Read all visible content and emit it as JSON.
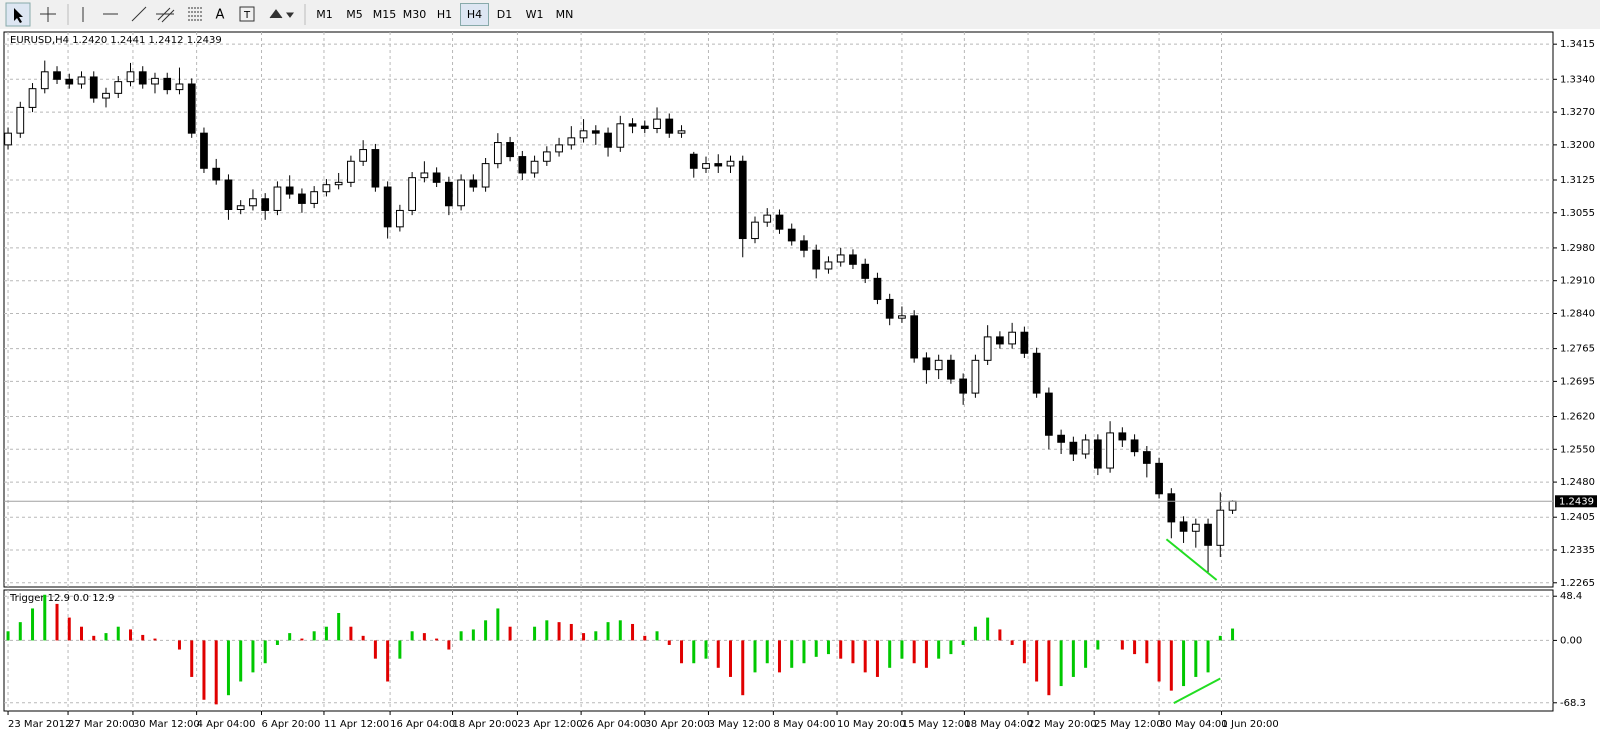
{
  "toolbar": {
    "timeframes": [
      "M1",
      "M5",
      "M15",
      "M30",
      "H1",
      "H4",
      "D1",
      "W1",
      "MN"
    ],
    "active": "H4"
  },
  "chart_data": [
    {
      "type": "candlestick",
      "title": "EURUSD,H4  1.2420 1.2441 1.2412 1.2439",
      "up_color": "#ffffff",
      "down_color": "#000000",
      "outline_color": "#000000",
      "open": [
        1.32,
        1.3225,
        1.328,
        1.332,
        1.3356,
        1.334,
        1.333,
        1.3345,
        1.33,
        1.331,
        1.3335,
        1.3356,
        1.333,
        1.3342,
        1.3318,
        1.333,
        1.3225,
        1.315,
        1.3125,
        1.3062,
        1.307,
        1.3085,
        1.306,
        1.311,
        1.3095,
        1.3075,
        1.31,
        1.3115,
        1.312,
        1.3165,
        1.319,
        1.311,
        1.3025,
        1.306,
        1.313,
        1.314,
        1.312,
        1.307,
        1.3125,
        1.311,
        1.316,
        1.3205,
        1.3175,
        1.314,
        1.3165,
        1.3185,
        1.32,
        1.3215,
        1.323,
        1.3225,
        1.3195,
        1.3245,
        1.324,
        1.3235,
        1.3255,
        1.3225,
        1.318,
        1.315,
        1.316,
        1.3155,
        1.3165,
        1.3,
        1.3035,
        1.305,
        1.302,
        1.2995,
        1.2975,
        1.2935,
        1.295,
        1.2965,
        1.2945,
        1.2915,
        1.287,
        1.283,
        1.2835,
        1.2745,
        1.272,
        1.274,
        1.27,
        1.267,
        1.274,
        1.279,
        1.2775,
        1.28,
        1.2755,
        1.267,
        1.258,
        1.2565,
        1.254,
        1.257,
        1.251,
        1.2585,
        1.257,
        1.2545,
        1.252,
        1.2455,
        1.2395,
        1.2375,
        1.239,
        1.2345,
        1.242
      ],
      "high": [
        1.3237,
        1.3292,
        1.3332,
        1.338,
        1.3368,
        1.3352,
        1.3357,
        1.3357,
        1.3322,
        1.3347,
        1.3375,
        1.3368,
        1.3354,
        1.3354,
        1.3365,
        1.3342,
        1.3237,
        1.317,
        1.3137,
        1.3082,
        1.3105,
        1.3097,
        1.3122,
        1.3135,
        1.3107,
        1.3112,
        1.3127,
        1.314,
        1.3177,
        1.321,
        1.3202,
        1.3122,
        1.3072,
        1.3142,
        1.3165,
        1.3152,
        1.3132,
        1.3137,
        1.3137,
        1.3172,
        1.3225,
        1.3217,
        1.3187,
        1.3177,
        1.3197,
        1.3215,
        1.324,
        1.3255,
        1.3242,
        1.3237,
        1.3262,
        1.3257,
        1.3252,
        1.328,
        1.3267,
        1.3242,
        1.3185,
        1.3175,
        1.318,
        1.3177,
        1.3177,
        1.3047,
        1.3065,
        1.3062,
        1.3032,
        1.3007,
        1.2987,
        1.2962,
        1.298,
        1.2977,
        1.2957,
        1.2927,
        1.2882,
        1.2855,
        1.2847,
        1.2757,
        1.2752,
        1.2752,
        1.2712,
        1.2752,
        1.2815,
        1.2802,
        1.282,
        1.2812,
        1.2767,
        1.2682,
        1.2592,
        1.2577,
        1.2582,
        1.2582,
        1.261,
        1.2597,
        1.2582,
        1.2557,
        1.2532,
        1.2467,
        1.2407,
        1.2402,
        1.2402,
        1.2458,
        1.2441
      ],
      "low": [
        1.319,
        1.3215,
        1.327,
        1.331,
        1.333,
        1.332,
        1.332,
        1.329,
        1.328,
        1.33,
        1.3325,
        1.332,
        1.331,
        1.3308,
        1.3308,
        1.3215,
        1.314,
        1.3115,
        1.304,
        1.3052,
        1.306,
        1.304,
        1.305,
        1.3085,
        1.3055,
        1.3065,
        1.309,
        1.3105,
        1.311,
        1.3155,
        1.31,
        1.3,
        1.3015,
        1.305,
        1.312,
        1.311,
        1.305,
        1.306,
        1.31,
        1.31,
        1.315,
        1.3165,
        1.3125,
        1.313,
        1.3155,
        1.3175,
        1.319,
        1.3205,
        1.32,
        1.3175,
        1.3185,
        1.3225,
        1.3225,
        1.3225,
        1.3215,
        1.3215,
        1.313,
        1.314,
        1.314,
        1.314,
        1.296,
        1.299,
        1.3025,
        1.301,
        1.2985,
        1.296,
        1.2915,
        1.2925,
        1.294,
        1.2935,
        1.2905,
        1.286,
        1.2815,
        1.282,
        1.2735,
        1.269,
        1.27,
        1.269,
        1.2645,
        1.266,
        1.273,
        1.2765,
        1.2765,
        1.2745,
        1.266,
        1.255,
        1.254,
        1.2525,
        1.253,
        1.2495,
        1.25,
        1.2555,
        1.2535,
        1.249,
        1.2445,
        1.236,
        1.235,
        1.234,
        1.2285,
        1.232,
        1.2412
      ],
      "close": [
        1.3225,
        1.328,
        1.332,
        1.3356,
        1.334,
        1.333,
        1.3345,
        1.33,
        1.331,
        1.3335,
        1.3356,
        1.333,
        1.3342,
        1.3318,
        1.333,
        1.3225,
        1.315,
        1.3125,
        1.3062,
        1.307,
        1.3085,
        1.306,
        1.311,
        1.3095,
        1.3075,
        1.31,
        1.3115,
        1.312,
        1.3165,
        1.319,
        1.311,
        1.3025,
        1.306,
        1.313,
        1.314,
        1.312,
        1.307,
        1.3125,
        1.311,
        1.316,
        1.3205,
        1.3175,
        1.314,
        1.3165,
        1.3185,
        1.32,
        1.3215,
        1.323,
        1.3225,
        1.3195,
        1.3245,
        1.324,
        1.3235,
        1.3255,
        1.3225,
        1.323,
        1.315,
        1.316,
        1.3155,
        1.3165,
        1.3,
        1.3035,
        1.305,
        1.302,
        1.2995,
        1.2975,
        1.2935,
        1.295,
        1.2965,
        1.2945,
        1.2915,
        1.287,
        1.283,
        1.2835,
        1.2745,
        1.272,
        1.274,
        1.27,
        1.267,
        1.274,
        1.279,
        1.2775,
        1.28,
        1.2755,
        1.267,
        1.258,
        1.2565,
        1.254,
        1.257,
        1.251,
        1.2585,
        1.257,
        1.2545,
        1.252,
        1.2455,
        1.2395,
        1.2375,
        1.239,
        1.2345,
        1.242,
        1.2439
      ],
      "last_price": 1.2439,
      "xlim": [
        -0.33,
        126.17
      ],
      "xticks": [
        {
          "value": 0,
          "label": "23 Mar 2012"
        },
        {
          "value": 4.9,
          "label": "27 Mar 20:00"
        },
        {
          "value": 10.2,
          "label": "30 Mar 12:00"
        },
        {
          "value": 15.4,
          "label": "4 Apr 04:00"
        },
        {
          "value": 20.7,
          "label": "6 Apr 20:00"
        },
        {
          "value": 25.8,
          "label": "11 Apr 12:00"
        },
        {
          "value": 31.2,
          "label": "16 Apr 04:00"
        },
        {
          "value": 36.3,
          "label": "18 Apr 20:00"
        },
        {
          "value": 41.6,
          "label": "23 Apr 12:00"
        },
        {
          "value": 46.8,
          "label": "26 Apr 04:00"
        },
        {
          "value": 52,
          "label": "30 Apr 20:00"
        },
        {
          "value": 57.2,
          "label": "3 May 12:00"
        },
        {
          "value": 62.5,
          "label": "8 May 04:00"
        },
        {
          "value": 67.7,
          "label": "10 May 20:00"
        },
        {
          "value": 73,
          "label": "15 May 12:00"
        },
        {
          "value": 78.1,
          "label": "18 May 04:00"
        },
        {
          "value": 83.3,
          "label": "22 May 20:00"
        },
        {
          "value": 88.7,
          "label": "25 May 12:00"
        },
        {
          "value": 94,
          "label": "30 May 04:00"
        },
        {
          "value": 99.1,
          "label": "1 Jun 20:00"
        }
      ],
      "ylim": [
        1.2256,
        1.3441
      ],
      "yticks": [
        1.3415,
        {
          "value": 1.334,
          "label": "1.3340"
        },
        {
          "value": 1.327,
          "label": "1.3270"
        },
        {
          "value": 1.32,
          "label": "1.3200"
        },
        1.3125,
        1.3055,
        {
          "value": 1.298,
          "label": "1.2980"
        },
        {
          "value": 1.291,
          "label": "1.2910"
        },
        {
          "value": 1.284,
          "label": "1.2840"
        },
        1.2765,
        1.2695,
        {
          "value": 1.262,
          "label": "1.2620"
        },
        {
          "value": 1.255,
          "label": "1.2550"
        },
        {
          "value": 1.248,
          "label": "1.2480"
        },
        1.2405,
        1.2335,
        1.2265
      ],
      "grid": true,
      "trendlines": [
        {
          "x": [
            94.6,
            98.7
          ],
          "y": [
            1.2358,
            1.2271
          ],
          "color": "#22dd22"
        }
      ]
    },
    {
      "type": "histogram",
      "title": "Trigger 12.9 0.0 12.9",
      "up_color": "#00c800",
      "down_color": "#e00000",
      "values": [
        10,
        20,
        35,
        50,
        40,
        25,
        15,
        5,
        8,
        15,
        12,
        6,
        2,
        0,
        -10,
        -40,
        -65,
        -70,
        -60,
        -45,
        -35,
        -25,
        -5,
        8,
        2,
        10,
        15,
        30,
        15,
        5,
        -20,
        -45,
        -20,
        10,
        8,
        2,
        -10,
        10,
        12,
        22,
        35,
        15,
        0,
        15,
        22,
        20,
        18,
        8,
        10,
        20,
        22,
        18,
        5,
        10,
        -5,
        -25,
        -25,
        -20,
        -30,
        -40,
        -60,
        -35,
        -25,
        -35,
        -30,
        -25,
        -18,
        -15,
        -20,
        -25,
        -35,
        -40,
        -30,
        -20,
        -25,
        -30,
        -20,
        -15,
        -5,
        15,
        25,
        12,
        -5,
        -25,
        -45,
        -60,
        -50,
        -40,
        -30,
        -10,
        0,
        -10,
        -15,
        -25,
        -45,
        -55,
        -50,
        -40,
        -35,
        5,
        13
      ],
      "xlim": [
        -0.33,
        126.17
      ],
      "ylim": [
        -77.3,
        55.2
      ],
      "yticks": [
        48.4,
        {
          "value": 0,
          "label": "0.00"
        },
        -68.3
      ],
      "grid": true,
      "trendlines": [
        {
          "x": [
            95.2,
            99.0
          ],
          "y": [
            -68.7,
            -41.7
          ],
          "color": "#22dd22"
        }
      ]
    }
  ]
}
